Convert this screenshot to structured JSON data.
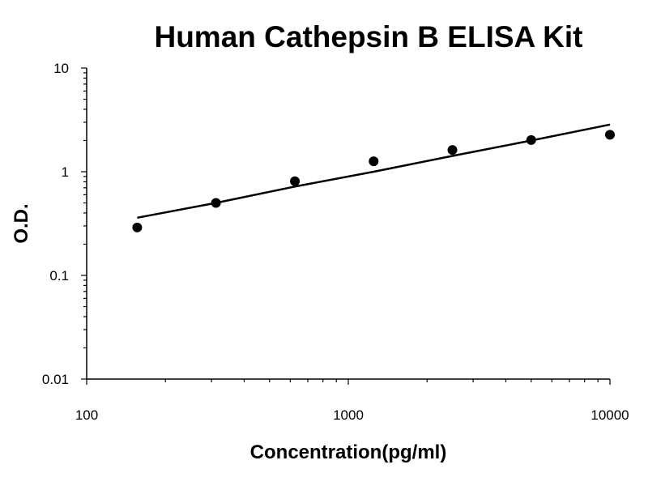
{
  "chart_data": {
    "type": "scatter",
    "title": "Human Cathepsin B ELISA Kit",
    "xlabel": "Concentration(pg/ml)",
    "ylabel": "O.D.",
    "x_scale": "log",
    "y_scale": "log",
    "xlim": [
      100,
      10000
    ],
    "ylim": [
      0.01,
      10
    ],
    "x_ticks": [
      100,
      1000,
      10000
    ],
    "x_tick_labels": [
      "100",
      "1000",
      "10000"
    ],
    "y_ticks": [
      0.01,
      0.1,
      1,
      10
    ],
    "y_tick_labels": [
      "0.01",
      "0.1",
      "1",
      "10"
    ],
    "grid": false,
    "legend": "none",
    "point_color": "#000000",
    "line_color": "#000000",
    "series": [
      {
        "points": [
          {
            "x": 156,
            "y": 0.29
          },
          {
            "x": 312,
            "y": 0.5
          },
          {
            "x": 625,
            "y": 0.81
          },
          {
            "x": 1250,
            "y": 1.26
          },
          {
            "x": 2500,
            "y": 1.62
          },
          {
            "x": 5000,
            "y": 2.02
          },
          {
            "x": 10000,
            "y": 2.27
          }
        ]
      }
    ],
    "fit_line": [
      {
        "x": 156,
        "y": 0.36
      },
      {
        "x": 312,
        "y": 0.5
      },
      {
        "x": 625,
        "y": 0.72
      },
      {
        "x": 1250,
        "y": 1.0
      },
      {
        "x": 2500,
        "y": 1.42
      },
      {
        "x": 5000,
        "y": 2.0
      },
      {
        "x": 10000,
        "y": 2.85
      }
    ]
  }
}
